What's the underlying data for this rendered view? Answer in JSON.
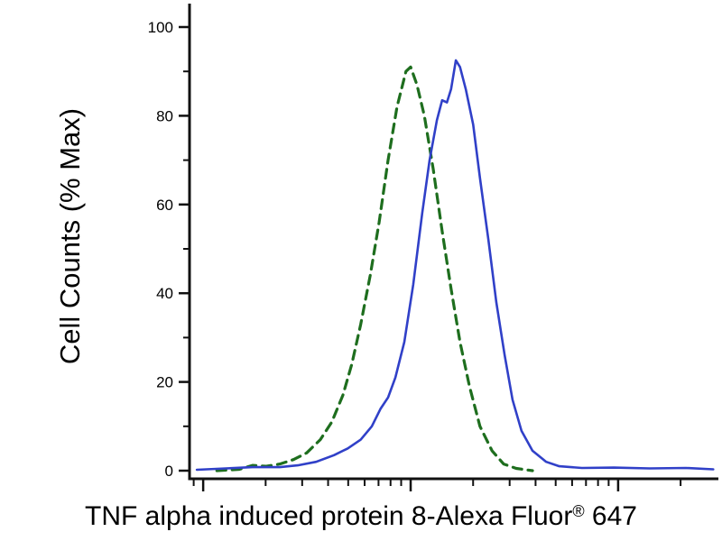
{
  "figure": {
    "background": "#ffffff",
    "axis_color": "#111111"
  },
  "chart_data": {
    "type": "line",
    "subtype": "flow-cytometry-histogram",
    "title": "",
    "ylabel": "Cell Counts (% Max)",
    "xlabel_main": "TNF alpha induced protein 8-Alexa Fluor",
    "xlabel_sup": "®",
    "xlabel_end": " 647",
    "legend": "none",
    "grid": false,
    "y_axis": {
      "range": [
        0,
        100
      ],
      "major_ticks": [
        0,
        20,
        40,
        60,
        80,
        100
      ],
      "minor_ticks": [
        10,
        30,
        50,
        70,
        90
      ]
    },
    "x_axis": {
      "scale": "log",
      "tick_labels": [],
      "decade_positions_norm": [
        2.6,
        42.1,
        81.6
      ]
    },
    "series": [
      {
        "name": "green-dashed-control",
        "color": "#1e6e1e",
        "style": "dashed",
        "points": [
          [
            5.2,
            0
          ],
          [
            9.5,
            0.3
          ],
          [
            12.0,
            1.2
          ],
          [
            14.6,
            1.0
          ],
          [
            17.2,
            1.5
          ],
          [
            19.8,
            2.5
          ],
          [
            22.3,
            4
          ],
          [
            24.9,
            7
          ],
          [
            27.1,
            11
          ],
          [
            29.2,
            17
          ],
          [
            30.9,
            24
          ],
          [
            32.6,
            33
          ],
          [
            34.4,
            44
          ],
          [
            36.1,
            56
          ],
          [
            37.8,
            70
          ],
          [
            39.5,
            82
          ],
          [
            41.2,
            90
          ],
          [
            42.1,
            91
          ],
          [
            43.3,
            87
          ],
          [
            44.7,
            80
          ],
          [
            46.4,
            68
          ],
          [
            48.1,
            54
          ],
          [
            49.8,
            41
          ],
          [
            51.5,
            29
          ],
          [
            53.3,
            19
          ],
          [
            55.3,
            10
          ],
          [
            57.6,
            4.5
          ],
          [
            59.8,
            1.5
          ],
          [
            62.2,
            0.5
          ],
          [
            65.3,
            0
          ]
        ]
      },
      {
        "name": "blue-solid-stained",
        "color": "#3040c8",
        "style": "solid",
        "points": [
          [
            1.4,
            0.2
          ],
          [
            6.9,
            0.5
          ],
          [
            12.0,
            0.8
          ],
          [
            17.2,
            0.8
          ],
          [
            20.6,
            1.2
          ],
          [
            24.1,
            2
          ],
          [
            27.5,
            3.5
          ],
          [
            30.1,
            5
          ],
          [
            32.6,
            7
          ],
          [
            34.7,
            10
          ],
          [
            36.4,
            14
          ],
          [
            37.8,
            16.5
          ],
          [
            39.2,
            21
          ],
          [
            40.9,
            29
          ],
          [
            42.6,
            42
          ],
          [
            44.3,
            58
          ],
          [
            45.7,
            70
          ],
          [
            47.1,
            79
          ],
          [
            48.1,
            83.5
          ],
          [
            49.0,
            83
          ],
          [
            49.8,
            86
          ],
          [
            50.7,
            92.5
          ],
          [
            51.5,
            91
          ],
          [
            52.6,
            86
          ],
          [
            54.0,
            78
          ],
          [
            55.3,
            66
          ],
          [
            56.9,
            52
          ],
          [
            58.4,
            38
          ],
          [
            60.0,
            26
          ],
          [
            61.5,
            16
          ],
          [
            63.2,
            9
          ],
          [
            65.3,
            4.5
          ],
          [
            67.9,
            2
          ],
          [
            70.4,
            1
          ],
          [
            74.7,
            0.6
          ],
          [
            80.8,
            0.7
          ],
          [
            87.6,
            0.5
          ],
          [
            94.5,
            0.6
          ],
          [
            99.7,
            0.3
          ]
        ]
      }
    ]
  }
}
